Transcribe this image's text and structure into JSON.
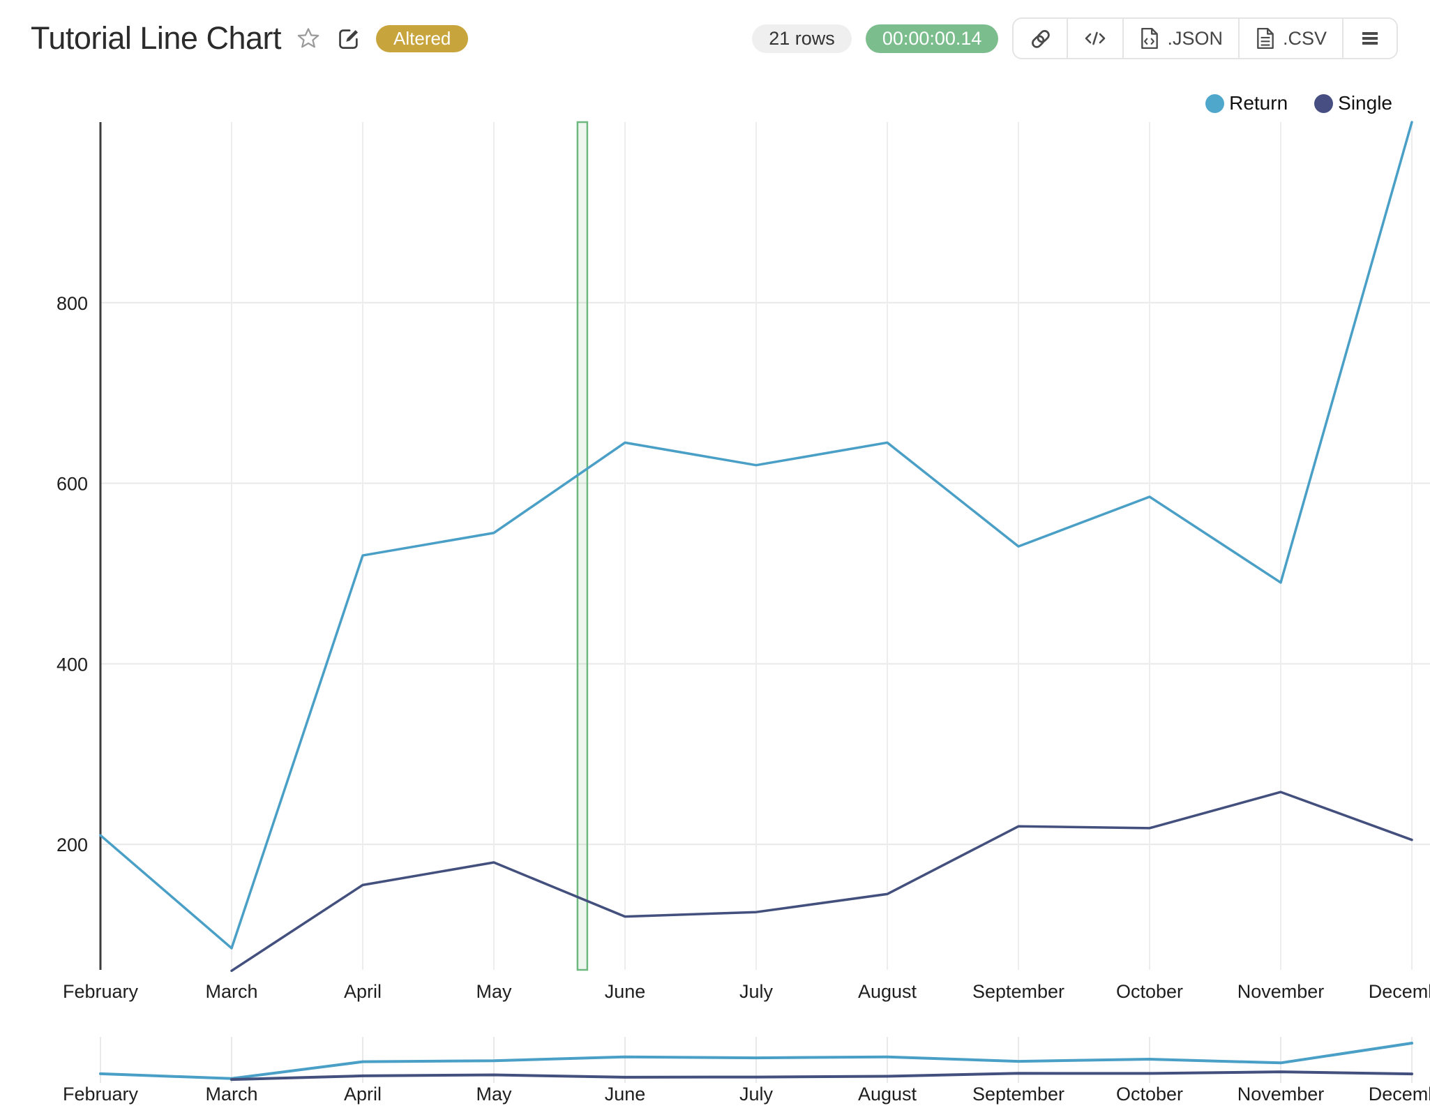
{
  "header": {
    "title": "Tutorial Line Chart",
    "altered_badge": "Altered",
    "row_count": "21 rows",
    "elapsed_time": "00:00:00.14",
    "export_json": ".JSON",
    "export_csv": ".CSV"
  },
  "colors": {
    "altered_badge_bg": "#C7A43C",
    "rows_pill_bg": "#EFEFEF",
    "time_pill_bg": "#7CBD8E",
    "return_line": "#4A9FC6",
    "single_line": "#43507E",
    "grid": "#E9E9E9",
    "axis": "#3C3C3C",
    "tick_text": "#1E1E1E",
    "highlight_border": "#6CB87E",
    "highlight_fill": "rgba(120,185,135,0.13)"
  },
  "legend": {
    "items": [
      {
        "label": "Return",
        "color": "#4FA8CC"
      },
      {
        "label": "Single",
        "color": "#474F82"
      }
    ]
  },
  "chart_data": {
    "type": "line",
    "title": "Tutorial Line Chart",
    "categories": [
      "February",
      "March",
      "April",
      "May",
      "June",
      "July",
      "August",
      "September",
      "October",
      "November",
      "December"
    ],
    "series": [
      {
        "name": "Return",
        "color": "#4A9FC6",
        "values": [
          210,
          85,
          520,
          545,
          645,
          620,
          645,
          530,
          585,
          490,
          1000
        ]
      },
      {
        "name": "Single",
        "color": "#43507E",
        "values": [
          null,
          60,
          155,
          180,
          120,
          125,
          145,
          220,
          218,
          258,
          205
        ]
      }
    ],
    "y_ticks": [
      200,
      400,
      600,
      800
    ],
    "y_visible_range": [
      61,
      1000
    ],
    "grid": true,
    "legend_position": "top-right",
    "highlight_band": {
      "start_category": "May",
      "end_category": "June",
      "position_fraction": 0.675
    },
    "mini_chart": {
      "enabled": true,
      "shows": "full-series-overview"
    }
  }
}
